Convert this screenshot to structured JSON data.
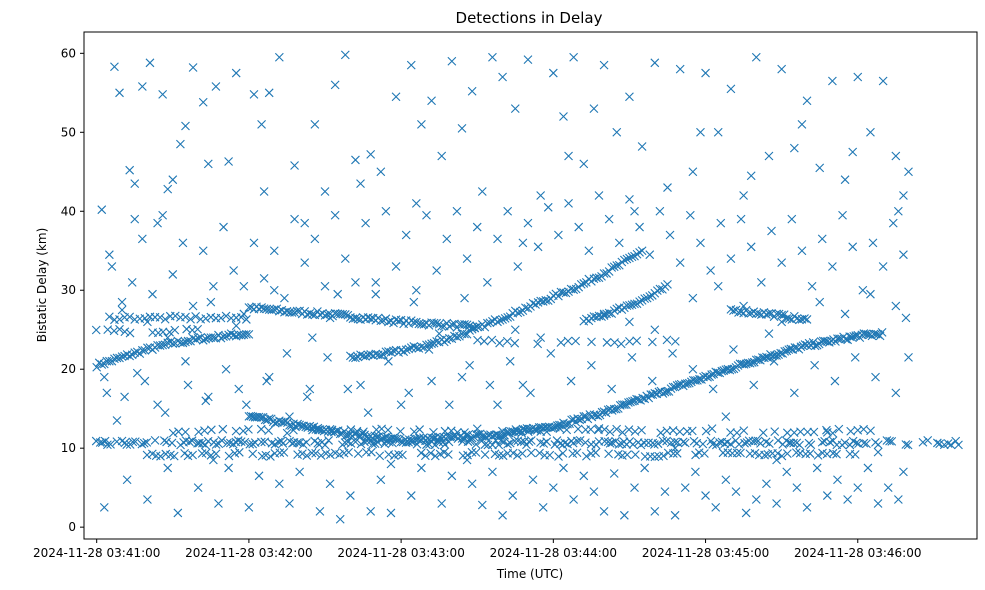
{
  "chart_data": {
    "type": "scatter",
    "title": "Detections in Delay",
    "xlabel": "Time (UTC)",
    "ylabel": "Bistatic Delay (km)",
    "x_unit": "seconds after 2024-11-28 03:41:00",
    "xlim": [
      -5,
      347
    ],
    "ylim": [
      -1.5,
      62.7
    ],
    "x_ticks": [
      {
        "value": 0,
        "label": "2024-11-28 03:41:00"
      },
      {
        "value": 60,
        "label": "2024-11-28 03:42:00"
      },
      {
        "value": 120,
        "label": "2024-11-28 03:43:00"
      },
      {
        "value": 180,
        "label": "2024-11-28 03:44:00"
      },
      {
        "value": 240,
        "label": "2024-11-28 03:45:00"
      },
      {
        "value": 300,
        "label": "2024-11-28 03:46:00"
      }
    ],
    "y_ticks": [
      0,
      10,
      20,
      30,
      40,
      50,
      60
    ],
    "marker": "x",
    "color": "#1f77b4",
    "grid": false,
    "tracks": [
      {
        "x": [
          0,
          10,
          20,
          30,
          40,
          50,
          60
        ],
        "y": [
          20.5,
          21.5,
          22.5,
          23.3,
          23.8,
          24.2,
          24.5
        ],
        "step": 1
      },
      {
        "x": [
          60,
          75,
          90,
          105,
          120,
          135,
          150
        ],
        "y": [
          27.8,
          27.3,
          27.0,
          26.5,
          26.0,
          25.7,
          25.3
        ],
        "step": 1
      },
      {
        "x": [
          100,
          115,
          130,
          145,
          160,
          175,
          190,
          205,
          215
        ],
        "y": [
          21.5,
          22.0,
          23.0,
          24.5,
          26.5,
          28.5,
          30.5,
          33.0,
          35.0
        ],
        "step": 1
      },
      {
        "x": [
          60,
          80,
          100,
          120,
          140,
          160,
          180,
          200,
          220,
          240,
          260,
          280,
          300,
          310
        ],
        "y": [
          14.0,
          12.8,
          11.8,
          11.0,
          11.3,
          11.8,
          12.8,
          14.5,
          16.8,
          19.0,
          21.2,
          23.0,
          24.2,
          24.5
        ],
        "step": 0.8
      },
      {
        "x": [
          192,
          205,
          217,
          225
        ],
        "y": [
          26.0,
          27.5,
          29.0,
          30.5
        ],
        "step": 1
      },
      {
        "x": [
          250,
          265,
          280
        ],
        "y": [
          27.5,
          27.0,
          26.2
        ],
        "step": 1
      },
      {
        "x": [
          5,
          60
        ],
        "y": [
          26.5,
          26.5
        ],
        "step": 2
      }
    ],
    "bands": [
      {
        "x": [
          0,
          340
        ],
        "y": 10.7,
        "step": 1.1
      },
      {
        "x": [
          20,
          300
        ],
        "y": 9.2,
        "step": 1.8
      },
      {
        "x": [
          30,
          310
        ],
        "y": 12.2,
        "step": 2.5
      },
      {
        "x": [
          0,
          40
        ],
        "y": 24.8,
        "step": 2.2
      },
      {
        "x": [
          150,
          230
        ],
        "y": 23.5,
        "step": 3
      }
    ],
    "scatter_points": [
      [
        2,
        40.2
      ],
      [
        3,
        2.5
      ],
      [
        5,
        34.5
      ],
      [
        7,
        58.3
      ],
      [
        9,
        55.0
      ],
      [
        13,
        45.2
      ],
      [
        15,
        39.0
      ],
      [
        18,
        55.8
      ],
      [
        21,
        58.8
      ],
      [
        24,
        38.5
      ],
      [
        26,
        54.8
      ],
      [
        28,
        42.8
      ],
      [
        30,
        44.0
      ],
      [
        33,
        48.5
      ],
      [
        35,
        50.8
      ],
      [
        38,
        58.2
      ],
      [
        42,
        53.8
      ],
      [
        44,
        46.0
      ],
      [
        47,
        55.8
      ],
      [
        52,
        46.3
      ],
      [
        55,
        57.5
      ],
      [
        62,
        54.8
      ],
      [
        65,
        51.0
      ],
      [
        68,
        55.0
      ],
      [
        72,
        59.5
      ],
      [
        78,
        45.8
      ],
      [
        82,
        38.5
      ],
      [
        86,
        51.0
      ],
      [
        90,
        42.5
      ],
      [
        94,
        56.0
      ],
      [
        98,
        59.8
      ],
      [
        104,
        43.5
      ],
      [
        108,
        47.2
      ],
      [
        112,
        45.0
      ],
      [
        118,
        54.5
      ],
      [
        124,
        58.5
      ],
      [
        128,
        51.0
      ],
      [
        132,
        54.0
      ],
      [
        136,
        47.0
      ],
      [
        140,
        59.0
      ],
      [
        144,
        50.5
      ],
      [
        148,
        55.2
      ],
      [
        152,
        42.5
      ],
      [
        156,
        59.5
      ],
      [
        160,
        57.0
      ],
      [
        165,
        53.0
      ],
      [
        170,
        59.2
      ],
      [
        175,
        42.0
      ],
      [
        180,
        57.5
      ],
      [
        184,
        52.0
      ],
      [
        188,
        59.5
      ],
      [
        192,
        46.0
      ],
      [
        196,
        53.0
      ],
      [
        200,
        58.5
      ],
      [
        205,
        50.0
      ],
      [
        210,
        54.5
      ],
      [
        215,
        48.2
      ],
      [
        220,
        58.8
      ],
      [
        225,
        43.0
      ],
      [
        230,
        58.0
      ],
      [
        235,
        45.0
      ],
      [
        240,
        57.5
      ],
      [
        245,
        50.0
      ],
      [
        250,
        55.5
      ],
      [
        255,
        42.0
      ],
      [
        260,
        59.5
      ],
      [
        265,
        47.0
      ],
      [
        270,
        58.0
      ],
      [
        275,
        48.0
      ],
      [
        280,
        54.0
      ],
      [
        285,
        45.5
      ],
      [
        290,
        56.5
      ],
      [
        295,
        44.0
      ],
      [
        300,
        57.0
      ],
      [
        305,
        50.0
      ],
      [
        310,
        56.5
      ],
      [
        315,
        47.0
      ],
      [
        318,
        42.0
      ],
      [
        320,
        45.0
      ],
      [
        4,
        17.0
      ],
      [
        8,
        13.5
      ],
      [
        12,
        6.0
      ],
      [
        16,
        19.5
      ],
      [
        20,
        3.5
      ],
      [
        24,
        15.5
      ],
      [
        28,
        7.5
      ],
      [
        32,
        1.8
      ],
      [
        36,
        18.0
      ],
      [
        40,
        5.0
      ],
      [
        44,
        16.5
      ],
      [
        48,
        3.0
      ],
      [
        52,
        7.5
      ],
      [
        56,
        17.5
      ],
      [
        60,
        2.5
      ],
      [
        64,
        6.5
      ],
      [
        68,
        19.0
      ],
      [
        72,
        5.5
      ],
      [
        76,
        3.0
      ],
      [
        80,
        7.0
      ],
      [
        84,
        17.5
      ],
      [
        88,
        2.0
      ],
      [
        92,
        5.5
      ],
      [
        96,
        1.0
      ],
      [
        100,
        4.0
      ],
      [
        104,
        18.0
      ],
      [
        108,
        2.0
      ],
      [
        112,
        6.0
      ],
      [
        116,
        1.8
      ],
      [
        120,
        15.5
      ],
      [
        124,
        4.0
      ],
      [
        128,
        7.5
      ],
      [
        132,
        18.5
      ],
      [
        136,
        3.0
      ],
      [
        140,
        6.5
      ],
      [
        144,
        19.0
      ],
      [
        148,
        5.5
      ],
      [
        152,
        2.8
      ],
      [
        156,
        7.0
      ],
      [
        160,
        1.5
      ],
      [
        164,
        4.0
      ],
      [
        168,
        18.0
      ],
      [
        172,
        6.0
      ],
      [
        176,
        2.5
      ],
      [
        180,
        5.0
      ],
      [
        184,
        7.5
      ],
      [
        188,
        3.5
      ],
      [
        192,
        6.5
      ],
      [
        196,
        4.5
      ],
      [
        200,
        2.0
      ],
      [
        204,
        6.8
      ],
      [
        208,
        1.5
      ],
      [
        212,
        5.0
      ],
      [
        216,
        7.5
      ],
      [
        220,
        2.0
      ],
      [
        224,
        4.5
      ],
      [
        228,
        1.5
      ],
      [
        232,
        5.0
      ],
      [
        236,
        7.0
      ],
      [
        240,
        4.0
      ],
      [
        244,
        2.5
      ],
      [
        248,
        6.0
      ],
      [
        252,
        4.5
      ],
      [
        256,
        1.8
      ],
      [
        260,
        3.5
      ],
      [
        264,
        5.5
      ],
      [
        268,
        3.0
      ],
      [
        272,
        7.0
      ],
      [
        276,
        5.0
      ],
      [
        280,
        2.5
      ],
      [
        284,
        7.5
      ],
      [
        288,
        4.0
      ],
      [
        292,
        6.0
      ],
      [
        296,
        3.5
      ],
      [
        300,
        5.0
      ],
      [
        304,
        7.5
      ],
      [
        308,
        3.0
      ],
      [
        312,
        5.0
      ],
      [
        316,
        3.5
      ],
      [
        318,
        7.0
      ],
      [
        6,
        33.0
      ],
      [
        10,
        28.5
      ],
      [
        14,
        31.0
      ],
      [
        18,
        36.5
      ],
      [
        22,
        29.5
      ],
      [
        26,
        39.5
      ],
      [
        30,
        32.0
      ],
      [
        34,
        36.0
      ],
      [
        38,
        28.0
      ],
      [
        42,
        35.0
      ],
      [
        46,
        30.5
      ],
      [
        50,
        38.0
      ],
      [
        54,
        32.5
      ],
      [
        58,
        27.0
      ],
      [
        62,
        36.0
      ],
      [
        66,
        31.5
      ],
      [
        70,
        35.0
      ],
      [
        74,
        29.0
      ],
      [
        78,
        39.0
      ],
      [
        82,
        33.5
      ],
      [
        86,
        36.5
      ],
      [
        90,
        30.5
      ],
      [
        94,
        39.5
      ],
      [
        98,
        34.0
      ],
      [
        102,
        31.0
      ],
      [
        106,
        38.5
      ],
      [
        110,
        29.5
      ],
      [
        114,
        40.0
      ],
      [
        118,
        33.0
      ],
      [
        122,
        37.0
      ],
      [
        126,
        30.0
      ],
      [
        130,
        39.5
      ],
      [
        134,
        32.5
      ],
      [
        138,
        36.5
      ],
      [
        142,
        40.0
      ],
      [
        146,
        34.0
      ],
      [
        150,
        38.0
      ],
      [
        154,
        31.0
      ],
      [
        158,
        36.5
      ],
      [
        162,
        40.0
      ],
      [
        166,
        33.0
      ],
      [
        170,
        38.5
      ],
      [
        174,
        35.5
      ],
      [
        178,
        40.5
      ],
      [
        182,
        37.0
      ],
      [
        186,
        41.0
      ],
      [
        190,
        38.0
      ],
      [
        194,
        35.0
      ],
      [
        198,
        42.0
      ],
      [
        202,
        39.0
      ],
      [
        206,
        36.0
      ],
      [
        210,
        41.5
      ],
      [
        214,
        38.0
      ],
      [
        218,
        34.5
      ],
      [
        222,
        40.0
      ],
      [
        226,
        37.0
      ],
      [
        230,
        33.5
      ],
      [
        234,
        39.5
      ],
      [
        238,
        36.0
      ],
      [
        242,
        32.5
      ],
      [
        246,
        38.5
      ],
      [
        250,
        34.0
      ],
      [
        254,
        39.0
      ],
      [
        258,
        35.5
      ],
      [
        262,
        31.0
      ],
      [
        266,
        37.5
      ],
      [
        270,
        33.5
      ],
      [
        274,
        39.0
      ],
      [
        278,
        35.0
      ],
      [
        282,
        30.5
      ],
      [
        286,
        36.5
      ],
      [
        290,
        33.0
      ],
      [
        294,
        39.5
      ],
      [
        298,
        35.5
      ],
      [
        302,
        30.0
      ],
      [
        306,
        36.0
      ],
      [
        310,
        33.0
      ],
      [
        314,
        38.5
      ],
      [
        318,
        34.5
      ],
      [
        3,
        19.0
      ],
      [
        11,
        16.5
      ],
      [
        19,
        18.5
      ],
      [
        27,
        14.5
      ],
      [
        35,
        21.0
      ],
      [
        43,
        16.0
      ],
      [
        51,
        20.0
      ],
      [
        59,
        15.5
      ],
      [
        67,
        18.5
      ],
      [
        75,
        22.0
      ],
      [
        83,
        16.5
      ],
      [
        91,
        21.5
      ],
      [
        99,
        17.5
      ],
      [
        107,
        14.5
      ],
      [
        115,
        21.0
      ],
      [
        123,
        17.0
      ],
      [
        131,
        22.5
      ],
      [
        139,
        15.5
      ],
      [
        147,
        20.5
      ],
      [
        155,
        18.0
      ],
      [
        163,
        21.0
      ],
      [
        171,
        17.0
      ],
      [
        179,
        22.0
      ],
      [
        187,
        18.5
      ],
      [
        195,
        20.5
      ],
      [
        203,
        17.5
      ],
      [
        211,
        21.5
      ],
      [
        219,
        18.5
      ],
      [
        227,
        22.0
      ],
      [
        235,
        20.0
      ],
      [
        243,
        17.5
      ],
      [
        251,
        22.5
      ],
      [
        259,
        18.0
      ],
      [
        267,
        21.0
      ],
      [
        275,
        17.0
      ],
      [
        283,
        20.5
      ],
      [
        291,
        18.5
      ],
      [
        299,
        21.5
      ],
      [
        307,
        19.0
      ],
      [
        315,
        17.0
      ],
      [
        320,
        21.5
      ],
      [
        10,
        27.5
      ],
      [
        20,
        26.0
      ],
      [
        45,
        28.5
      ],
      [
        55,
        25.5
      ],
      [
        70,
        30.0
      ],
      [
        85,
        24.0
      ],
      [
        95,
        29.5
      ],
      [
        110,
        31.0
      ],
      [
        125,
        28.5
      ],
      [
        135,
        24.5
      ],
      [
        145,
        29.0
      ],
      [
        165,
        25.0
      ],
      [
        175,
        24.0
      ],
      [
        200,
        27.0
      ],
      [
        210,
        26.0
      ],
      [
        220,
        25.0
      ],
      [
        235,
        29.0
      ],
      [
        245,
        30.5
      ],
      [
        255,
        28.0
      ],
      [
        265,
        24.5
      ],
      [
        270,
        26.0
      ],
      [
        285,
        28.5
      ],
      [
        295,
        27.0
      ],
      [
        305,
        29.5
      ],
      [
        315,
        28.0
      ],
      [
        319,
        26.5
      ],
      [
        15,
        43.5
      ],
      [
        28,
        24.0
      ],
      [
        46,
        8.5
      ],
      [
        58,
        30.5
      ],
      [
        66,
        42.5
      ],
      [
        76,
        14.0
      ],
      [
        92,
        26.5
      ],
      [
        102,
        46.5
      ],
      [
        116,
        8.0
      ],
      [
        126,
        41.0
      ],
      [
        146,
        8.5
      ],
      [
        158,
        15.5
      ],
      [
        168,
        36.0
      ],
      [
        186,
        47.0
      ],
      [
        198,
        12.5
      ],
      [
        212,
        40.0
      ],
      [
        228,
        10.0
      ],
      [
        238,
        50.0
      ],
      [
        248,
        14.0
      ],
      [
        258,
        44.5
      ],
      [
        268,
        8.5
      ],
      [
        278,
        51.0
      ],
      [
        288,
        12.0
      ],
      [
        298,
        47.5
      ],
      [
        308,
        9.5
      ],
      [
        316,
        40.0
      ]
    ]
  }
}
